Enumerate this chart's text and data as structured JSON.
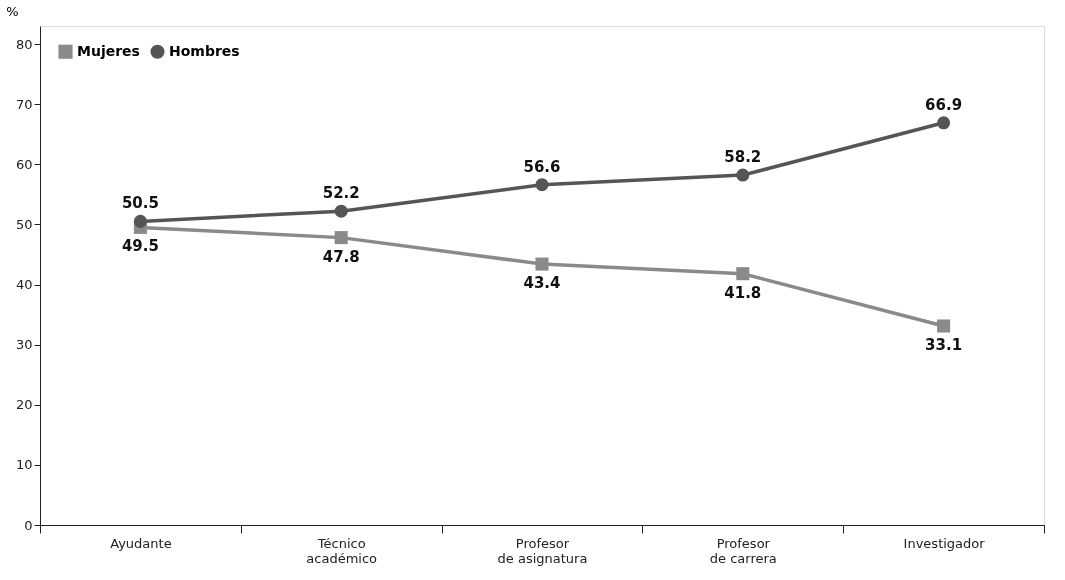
{
  "chart_data": {
    "type": "line",
    "ylabel": "%",
    "categories": [
      "Ayudante",
      "Técnico\nacadémico",
      "Profesor\nde asignatura",
      "Profesor\nde carrera",
      "Investigador"
    ],
    "series": [
      {
        "name": "Mujeres",
        "color": "#8a8a8a",
        "marker": "square",
        "values": [
          49.5,
          47.8,
          43.4,
          41.8,
          33.1
        ]
      },
      {
        "name": "Hombres",
        "color": "#555555",
        "marker": "circle",
        "values": [
          50.5,
          52.2,
          56.6,
          58.2,
          66.9
        ]
      }
    ],
    "ylim": [
      0,
      83
    ],
    "yticks": [
      0,
      10,
      20,
      30,
      40,
      50,
      60,
      70,
      80
    ],
    "grid": false,
    "legend": "top left",
    "data_labels": true,
    "line_style": "solid"
  }
}
